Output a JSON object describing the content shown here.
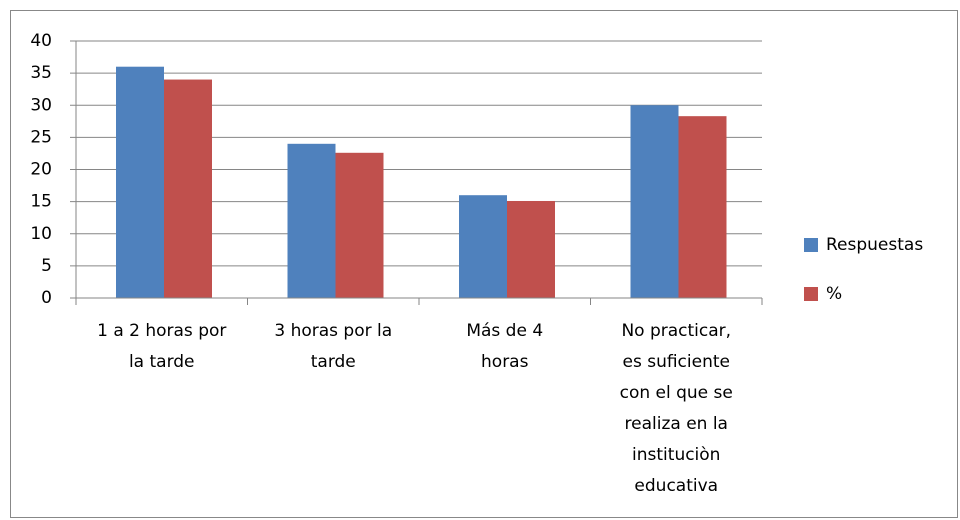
{
  "chart_data": {
    "type": "bar",
    "categories": [
      "1 a 2 horas por la tarde",
      "3 horas por la tarde",
      "Más de 4 horas",
      "No practicar, es suficiente con el que se realiza en la instituciòn educativa"
    ],
    "series": [
      {
        "name": "Respuestas",
        "color": "#4f81bd",
        "values": [
          36,
          24,
          16,
          30
        ]
      },
      {
        "name": "%",
        "color": "#c0504d",
        "values": [
          34,
          22.6,
          15.1,
          28.3
        ]
      }
    ],
    "ylim": [
      0,
      40
    ],
    "yticks": [
      0,
      5,
      10,
      15,
      20,
      25,
      30,
      35,
      40
    ],
    "grid": true,
    "legend": "right"
  }
}
